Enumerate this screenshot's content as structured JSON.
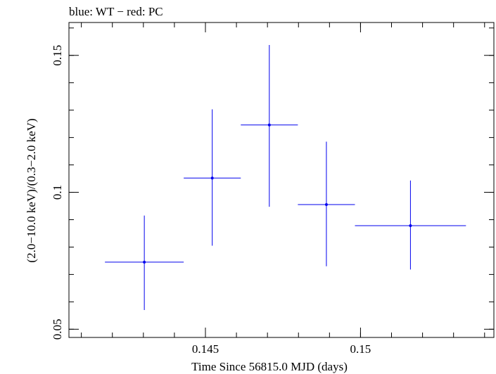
{
  "chart_data": {
    "type": "scatter",
    "title": "blue: WT − red: PC",
    "xlabel": "Time Since 56815.0 MJD (days)",
    "ylabel": "(2.0−10.0 keV)/(0.3−2.0 keV)",
    "xlim": [
      0.1406,
      0.1543
    ],
    "ylim": [
      0.047,
      0.162
    ],
    "x_ticks": [
      {
        "value": 0.145,
        "label": "0.145"
      },
      {
        "value": 0.15,
        "label": "0.15"
      }
    ],
    "y_ticks": [
      {
        "value": 0.05,
        "label": "0.05"
      },
      {
        "value": 0.1,
        "label": "0.1"
      },
      {
        "value": 0.15,
        "label": "0.15"
      }
    ],
    "x_minor_step": 0.001,
    "y_minor_step": 0.01,
    "grid": false,
    "series": [
      {
        "name": "WT",
        "color": "#0000ee",
        "points": [
          {
            "x": 0.14303,
            "y": 0.0745,
            "xerr_lo": 0.00127,
            "xerr_hi": 0.00127,
            "y_lo": 0.057,
            "y_hi": 0.0915
          },
          {
            "x": 0.14522,
            "y": 0.1052,
            "xerr_lo": 0.00092,
            "xerr_hi": 0.00092,
            "y_lo": 0.0805,
            "y_hi": 0.1303
          },
          {
            "x": 0.14706,
            "y": 0.1246,
            "xerr_lo": 0.00092,
            "xerr_hi": 0.00092,
            "y_lo": 0.0947,
            "y_hi": 0.1538
          },
          {
            "x": 0.1489,
            "y": 0.0955,
            "xerr_lo": 0.00092,
            "xerr_hi": 0.00092,
            "y_lo": 0.073,
            "y_hi": 0.1185
          },
          {
            "x": 0.15161,
            "y": 0.0878,
            "xerr_lo": 0.00179,
            "xerr_hi": 0.00179,
            "y_lo": 0.0718,
            "y_hi": 0.1043
          }
        ]
      }
    ]
  }
}
